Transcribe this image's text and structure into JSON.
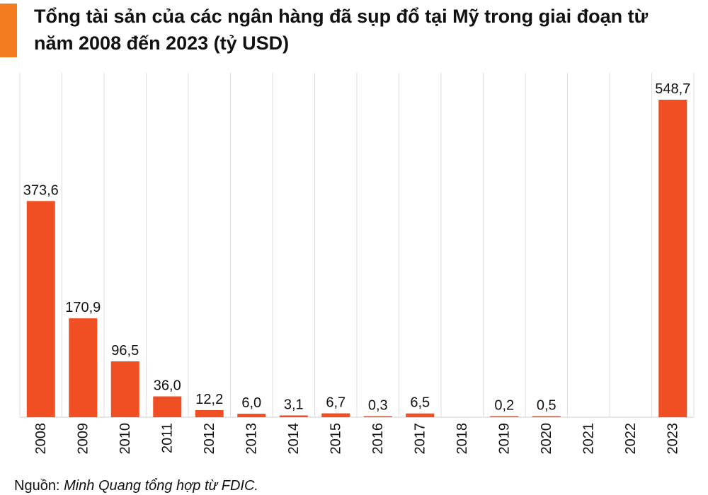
{
  "title": "Tổng tài sản của các ngân hàng đã sụp đổ tại Mỹ trong giai đoạn từ năm 2008 đến 2023 (tỷ USD)",
  "source_prefix": "Nguồn: ",
  "source_text": "Minh Quang tổng hợp từ FDIC.",
  "colors": {
    "bar": "#f04e23",
    "accent": "#f47b20",
    "grid": "#dedede"
  },
  "chart_data": {
    "type": "bar",
    "title": "Tổng tài sản của các ngân hàng đã sụp đổ tại Mỹ trong giai đoạn từ năm 2008 đến 2023 (tỷ USD)",
    "categories": [
      "2008",
      "2009",
      "2010",
      "2011",
      "2012",
      "2013",
      "2014",
      "2015",
      "2016",
      "2017",
      "2018",
      "2019",
      "2020",
      "2021",
      "2022",
      "2023"
    ],
    "values": [
      373.6,
      170.9,
      96.5,
      36.0,
      12.2,
      6.0,
      3.1,
      6.7,
      0.3,
      6.5,
      null,
      0.2,
      0.5,
      null,
      null,
      548.7
    ],
    "data_labels": [
      "373,6",
      "170,9",
      "96,5",
      "36,0",
      "12,2",
      "6,0",
      "3,1",
      "6,7",
      "0,3",
      "6,5",
      "",
      "0,2",
      "0,5",
      "",
      "",
      "548,7"
    ],
    "xlabel": "",
    "ylabel": "",
    "ylim": [
      0,
      548.7
    ],
    "grid": "vertical",
    "legend": "none"
  }
}
